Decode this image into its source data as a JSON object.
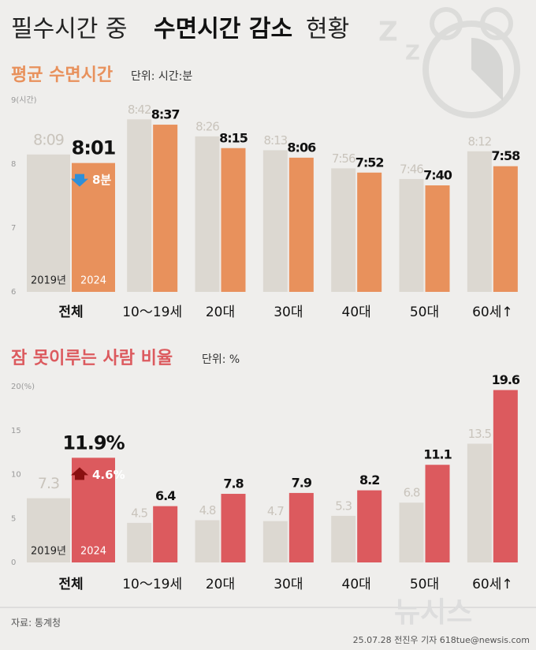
{
  "title_parts": [
    "필수시간 중",
    "수면시간 감소",
    "현황"
  ],
  "source": "자료: 통계청",
  "credit": "25.07.28 전진우 기자 618tue@newsis.com",
  "watermark": "뉴시스",
  "chart_data": [
    {
      "type": "bar",
      "title": "평균 수면시간",
      "unit": "단위: 시간:분",
      "categories": [
        "전체",
        "10～19세",
        "20대",
        "30대",
        "40대",
        "50대",
        "60세↑"
      ],
      "series": [
        {
          "name": "2019년",
          "color": "#dcd8d1",
          "values": [
            8.15,
            8.7,
            8.4333,
            8.2167,
            7.9333,
            7.7667,
            8.2
          ],
          "value_labels": [
            "8:09",
            "8:42",
            "8:26",
            "8:13",
            "7:56",
            "7:46",
            "8:12"
          ]
        },
        {
          "name": "2024",
          "color": "#e8915c",
          "values": [
            8.0167,
            8.6167,
            8.25,
            8.1,
            7.8667,
            7.6667,
            7.9667
          ],
          "value_labels": [
            "8:01",
            "8:37",
            "8:15",
            "8:06",
            "7:52",
            "7:40",
            "7:58"
          ]
        }
      ],
      "annotation": "8분",
      "annotation_color": "#2f8fd8",
      "ylim": [
        6,
        9
      ],
      "yticks": [
        6,
        7,
        8,
        {
          "value": 9,
          "label": "9(시간)"
        }
      ],
      "grid": false
    },
    {
      "type": "bar",
      "title": "잠 못이루는 사람 비율",
      "unit": "단위: %",
      "categories": [
        "전체",
        "10～19세",
        "20대",
        "30대",
        "40대",
        "50대",
        "60세↑"
      ],
      "series": [
        {
          "name": "2019년",
          "color": "#dcd8d1",
          "values": [
            7.3,
            4.5,
            4.8,
            4.7,
            5.3,
            6.8,
            13.5
          ]
        },
        {
          "name": "2024",
          "color": "#dc5a5e",
          "values": [
            11.9,
            6.4,
            7.8,
            7.9,
            8.2,
            11.1,
            19.6
          ],
          "value_labels": [
            "11.9%",
            "6.4",
            "7.8",
            "7.9",
            "8.2",
            "11.1",
            "19.6"
          ]
        }
      ],
      "annotation": "4.6%",
      "annotation_color": "#8a1010",
      "ylim": [
        0,
        20
      ],
      "yticks": [
        0,
        5,
        10,
        15,
        {
          "value": 20,
          "label": "20(%)"
        }
      ],
      "grid": false
    }
  ]
}
